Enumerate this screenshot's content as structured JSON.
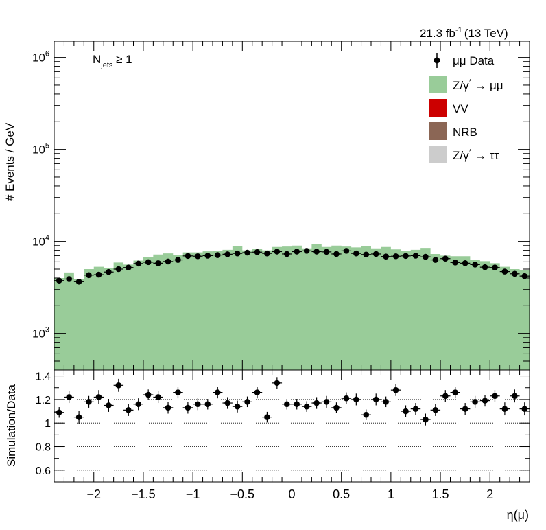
{
  "header": {
    "lumi": "21.3 fb",
    "lumi_exp": "-1",
    "energy": "(13 TeV)"
  },
  "annotation": {
    "n_text": "N",
    "n_sub": "jets",
    "n_cond": " ≥ 1"
  },
  "legend": {
    "data_label": "μμ Data",
    "zmm_a": "Z/γ",
    "zmm_sup": "*",
    "zmm_b": " → μμ",
    "vv": "VV",
    "nrb": "NRB",
    "ztt_a": "Z/γ",
    "ztt_sup": "*",
    "ztt_b": " → ττ"
  },
  "colors": {
    "zmm": "#99cc99",
    "vv": "#cc0000",
    "nrb": "#8b6655",
    "ztt": "#cccccc",
    "data": "#000000"
  },
  "chart_data": [
    {
      "type": "bar",
      "panel": "main",
      "xlabel": "η(μ)",
      "ylabel": "# Events / GeV",
      "yscale": "log",
      "xlim": [
        -2.4,
        2.4
      ],
      "ylim": [
        400,
        1500000
      ],
      "x_ticks": [
        "−2",
        "−1.5",
        "−1",
        "−0.5",
        "0",
        "0.5",
        "1",
        "1.5",
        "2"
      ],
      "y_ticks": [
        {
          "base": "10",
          "exp": "3",
          "value": 1000
        },
        {
          "base": "10",
          "exp": "4",
          "value": 10000
        },
        {
          "base": "10",
          "exp": "5",
          "value": 100000
        },
        {
          "base": "10",
          "exp": "6",
          "value": 1000000
        }
      ],
      "bin_edges": [
        -2.4,
        2.4
      ],
      "n_bins": 48,
      "series": [
        {
          "name": "Z/γ* → μμ",
          "kind": "stacked-hist",
          "values": [
            4000,
            4600,
            3900,
            5000,
            5300,
            5100,
            5900,
            5600,
            6200,
            6700,
            7200,
            7400,
            7100,
            7600,
            7600,
            7800,
            7900,
            8100,
            8900,
            8000,
            8300,
            8000,
            8700,
            8800,
            9000,
            8400,
            9300,
            8700,
            9000,
            8800,
            8600,
            8900,
            8400,
            8700,
            8200,
            7900,
            8100,
            8500,
            7300,
            7000,
            6900,
            6900,
            6300,
            6100,
            5800,
            5300,
            5000,
            4900
          ]
        },
        {
          "name": "VV",
          "kind": "stacked-hist",
          "values": []
        },
        {
          "name": "NRB",
          "kind": "stacked-hist",
          "values": []
        },
        {
          "name": "Z/γ* → ττ",
          "kind": "stacked-hist",
          "values": []
        },
        {
          "name": "μμ Data",
          "kind": "points",
          "values": [
            3750,
            3900,
            3650,
            4300,
            4350,
            4650,
            5000,
            5200,
            5750,
            5950,
            5800,
            6050,
            6300,
            6950,
            6900,
            7000,
            7100,
            7250,
            7400,
            7550,
            7650,
            7400,
            7750,
            7300,
            7750,
            7900,
            7750,
            7700,
            7300,
            7900,
            7400,
            7200,
            7300,
            6850,
            6900,
            6950,
            7000,
            6800,
            6300,
            6500,
            5900,
            5800,
            5600,
            5250,
            5200,
            4700,
            4450,
            4200
          ]
        }
      ]
    },
    {
      "type": "scatter",
      "panel": "ratio",
      "xlabel": "η(μ)",
      "ylabel": "Simulation/Data",
      "xlim": [
        -2.4,
        2.4
      ],
      "ylim": [
        0.5,
        1.45
      ],
      "y_ticks": [
        "0.6",
        "0.8",
        "1",
        "1.2",
        "1.4"
      ],
      "x_ticks": [
        "−2",
        "−1.5",
        "−1",
        "−0.5",
        "0",
        "0.5",
        "1",
        "1.5",
        "2"
      ],
      "gridlines_y": [
        0.6,
        0.8,
        1.0,
        1.2,
        1.4
      ],
      "series": [
        {
          "name": "Simulation/Data",
          "values": [
            1.09,
            1.22,
            1.05,
            1.18,
            1.22,
            1.15,
            1.32,
            1.11,
            1.16,
            1.24,
            1.22,
            1.13,
            1.26,
            1.13,
            1.16,
            1.16,
            1.26,
            1.17,
            1.14,
            1.18,
            1.26,
            1.05,
            1.34,
            1.16,
            1.16,
            1.14,
            1.17,
            1.18,
            1.13,
            1.21,
            1.2,
            1.07,
            1.2,
            1.18,
            1.28,
            1.1,
            1.12,
            1.03,
            1.11,
            1.23,
            1.26,
            1.12,
            1.18,
            1.19,
            1.23,
            1.12,
            1.23,
            1.12
          ],
          "errors": [
            0.045,
            0.05,
            0.055,
            0.05,
            0.06,
            0.055,
            0.055,
            0.05,
            0.05,
            0.045,
            0.05,
            0.05,
            0.05,
            0.05,
            0.05,
            0.045,
            0.05,
            0.05,
            0.05,
            0.045,
            0.05,
            0.045,
            0.05,
            0.045,
            0.045,
            0.045,
            0.05,
            0.05,
            0.045,
            0.05,
            0.05,
            0.045,
            0.05,
            0.045,
            0.05,
            0.05,
            0.05,
            0.05,
            0.05,
            0.05,
            0.05,
            0.05,
            0.05,
            0.05,
            0.05,
            0.055,
            0.055,
            0.055
          ]
        }
      ]
    }
  ]
}
